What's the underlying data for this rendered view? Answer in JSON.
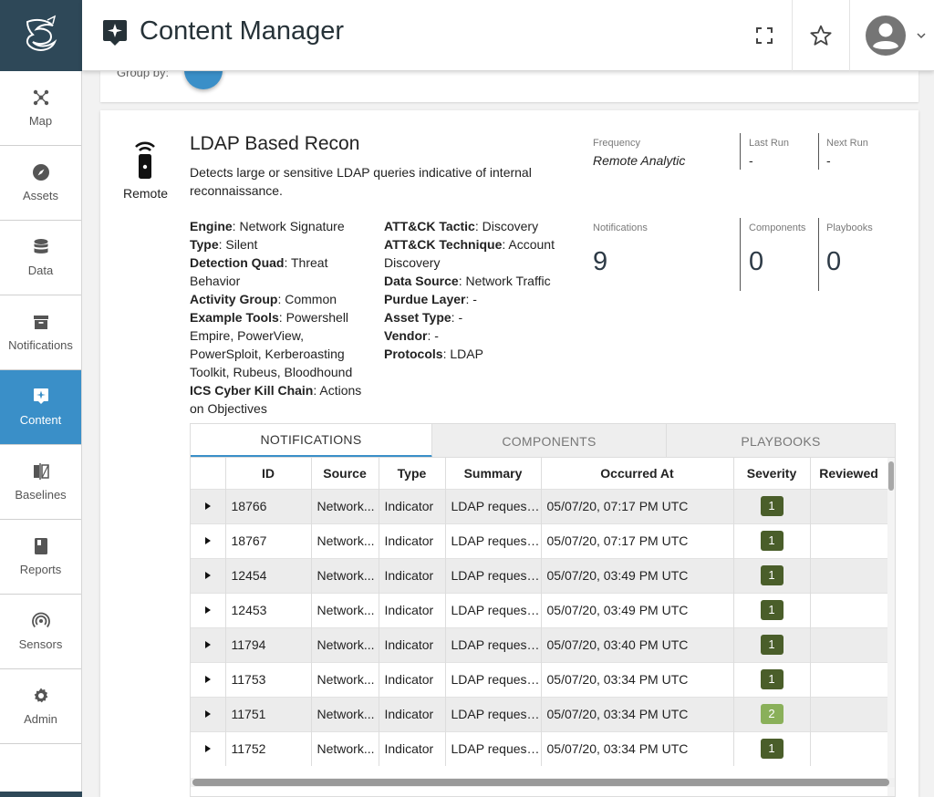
{
  "app": {
    "title": "Content Manager"
  },
  "sidebar": {
    "items": [
      {
        "label": "Map",
        "icon": "map-icon"
      },
      {
        "label": "Assets",
        "icon": "compass-icon"
      },
      {
        "label": "Data",
        "icon": "database-icon"
      },
      {
        "label": "Notifications",
        "icon": "archive-icon"
      },
      {
        "label": "Content",
        "icon": "content-icon",
        "active": true
      },
      {
        "label": "Baselines",
        "icon": "compare-icon"
      },
      {
        "label": "Reports",
        "icon": "book-icon"
      },
      {
        "label": "Sensors",
        "icon": "sensor-icon"
      },
      {
        "label": "Admin",
        "icon": "gear-icon"
      }
    ]
  },
  "top_card": {
    "group_by_label": "Group by:"
  },
  "analytic": {
    "icon_label": "Remote",
    "title": "LDAP Based Recon",
    "description": "Detects large or sensitive LDAP queries indicative of internal reconnaissance.",
    "attributes_left": [
      {
        "key": "Engine",
        "value": "Network Signature"
      },
      {
        "key": "Type",
        "value": "Silent"
      },
      {
        "key": "Detection Quad",
        "value": "Threat Behavior"
      },
      {
        "key": "Activity Group",
        "value": "Common"
      },
      {
        "key": "Example Tools",
        "value": "Powershell Empire, PowerView, PowerSploit, Kerberoasting Toolkit, Rubeus, Bloodhound"
      },
      {
        "key": "ICS Cyber Kill Chain",
        "value": "Actions on Objectives"
      }
    ],
    "attributes_right": [
      {
        "key": "ATT&CK Tactic",
        "value": "Discovery"
      },
      {
        "key": "ATT&CK Technique",
        "value": "Account Discovery"
      },
      {
        "key": "Data Source",
        "value": "Network Traffic"
      },
      {
        "key": "Purdue Layer",
        "value": "-"
      },
      {
        "key": "Asset Type",
        "value": "-"
      },
      {
        "key": "Vendor",
        "value": "-"
      },
      {
        "key": "Protocols",
        "value": "LDAP"
      }
    ],
    "meta": {
      "frequency_label": "Frequency",
      "frequency": "Remote Analytic",
      "last_run_label": "Last Run",
      "last_run": "-",
      "next_run_label": "Next Run",
      "next_run": "-",
      "notifications_label": "Notifications",
      "notifications": "9",
      "components_label": "Components",
      "components": "0",
      "playbooks_label": "Playbooks",
      "playbooks": "0"
    }
  },
  "tabs": [
    "NOTIFICATIONS",
    "COMPONENTS",
    "PLAYBOOKS"
  ],
  "table": {
    "columns": [
      "",
      "ID",
      "Source",
      "Type",
      "Summary",
      "Occurred At",
      "Severity",
      "Reviewed"
    ],
    "rows": [
      {
        "id": "18766",
        "source": "Network...",
        "type": "Indicator",
        "summary": "LDAP request...",
        "occurred": "05/07/20, 07:17 PM UTC",
        "severity": "1"
      },
      {
        "id": "18767",
        "source": "Network...",
        "type": "Indicator",
        "summary": "LDAP request...",
        "occurred": "05/07/20, 07:17 PM UTC",
        "severity": "1"
      },
      {
        "id": "12454",
        "source": "Network...",
        "type": "Indicator",
        "summary": "LDAP request...",
        "occurred": "05/07/20, 03:49 PM UTC",
        "severity": "1"
      },
      {
        "id": "12453",
        "source": "Network...",
        "type": "Indicator",
        "summary": "LDAP request...",
        "occurred": "05/07/20, 03:49 PM UTC",
        "severity": "1"
      },
      {
        "id": "11794",
        "source": "Network...",
        "type": "Indicator",
        "summary": "LDAP request...",
        "occurred": "05/07/20, 03:40 PM UTC",
        "severity": "1"
      },
      {
        "id": "11753",
        "source": "Network...",
        "type": "Indicator",
        "summary": "LDAP request...",
        "occurred": "05/07/20, 03:34 PM UTC",
        "severity": "1"
      },
      {
        "id": "11751",
        "source": "Network...",
        "type": "Indicator",
        "summary": "LDAP request...",
        "occurred": "05/07/20, 03:34 PM UTC",
        "severity": "2"
      },
      {
        "id": "11752",
        "source": "Network...",
        "type": "Indicator",
        "summary": "LDAP request...",
        "occurred": "05/07/20, 03:34 PM UTC",
        "severity": "1"
      }
    ]
  },
  "colors": {
    "accent": "#3a8fc8",
    "brand_dark": "#2e4858",
    "severity_1": "#4a5e2a",
    "severity_2": "#8ab05a"
  }
}
